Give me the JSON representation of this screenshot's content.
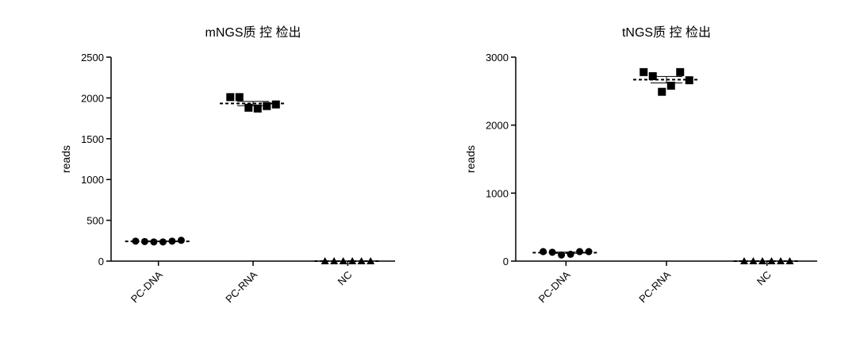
{
  "chart_data": [
    {
      "type": "dot",
      "title": "mNGS质 控 检出",
      "y_label": "reads",
      "categories": [
        "PC-DNA",
        "PC-RNA",
        "NC"
      ],
      "markers": [
        "circle",
        "square",
        "triangle"
      ],
      "color": "#000000",
      "values": [
        [
          245,
          240,
          235,
          235,
          245,
          255
        ],
        [
          2010,
          2010,
          1880,
          1870,
          1900,
          1920
        ],
        [
          0,
          0,
          0,
          0,
          0,
          0
        ]
      ],
      "ylim": [
        0,
        2500
      ],
      "yticks": [
        0,
        500,
        1000,
        1500,
        2000,
        2500
      ],
      "mean_line": true
    },
    {
      "type": "dot",
      "title": "tNGS质 控 检出",
      "y_label": "reads",
      "categories": [
        "PC-DNA",
        "PC-RNA",
        "NC"
      ],
      "markers": [
        "circle",
        "square",
        "triangle"
      ],
      "color": "#000000",
      "values": [
        [
          140,
          130,
          90,
          100,
          140,
          140
        ],
        [
          2780,
          2720,
          2490,
          2580,
          2780,
          2660
        ],
        [
          0,
          0,
          0,
          0,
          0,
          0
        ]
      ],
      "ylim": [
        0,
        3000
      ],
      "yticks": [
        0,
        1000,
        2000,
        3000
      ],
      "mean_line": true
    }
  ]
}
